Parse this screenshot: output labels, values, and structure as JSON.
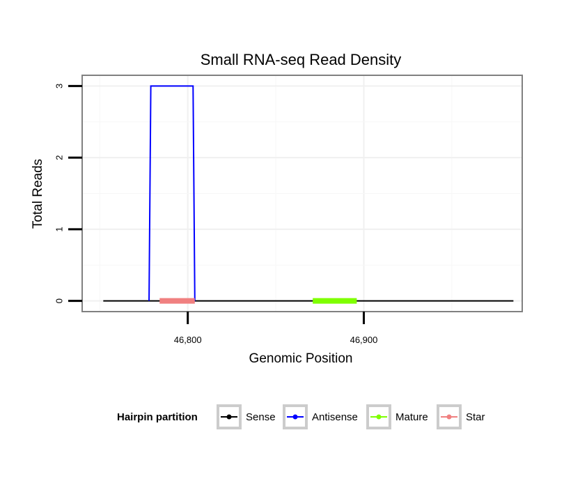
{
  "chart_data": {
    "type": "line",
    "title": "Small RNA-seq Read Density",
    "xlabel": "Genomic Position",
    "ylabel": "Total Reads",
    "xlim": [
      46740,
      46990
    ],
    "ylim": [
      -0.15,
      3.15
    ],
    "x_ticks": [
      46800,
      46900
    ],
    "x_tick_labels": [
      "46,800",
      "46,900"
    ],
    "y_ticks": [
      0,
      1,
      2,
      3
    ],
    "y_tick_labels": [
      "0",
      "1",
      "2",
      "3"
    ],
    "grid": true,
    "legend_position": "bottom",
    "legend_title": "Hairpin partition",
    "series": [
      {
        "name": "Sense",
        "color": "#000000",
        "kind": "line",
        "x": [
          46752,
          46985
        ],
        "y": [
          0,
          0
        ]
      },
      {
        "name": "Antisense",
        "color": "#0000ff",
        "kind": "line",
        "x": [
          46778,
          46779,
          46803,
          46804
        ],
        "y": [
          0,
          3,
          3,
          0
        ]
      },
      {
        "name": "Mature",
        "color": "#7fff00",
        "kind": "segment",
        "x": [
          46871,
          46896
        ],
        "y": [
          0,
          0
        ]
      },
      {
        "name": "Star",
        "color": "#f08080",
        "kind": "segment",
        "x": [
          46784,
          46804
        ],
        "y": [
          0,
          0
        ]
      }
    ]
  }
}
